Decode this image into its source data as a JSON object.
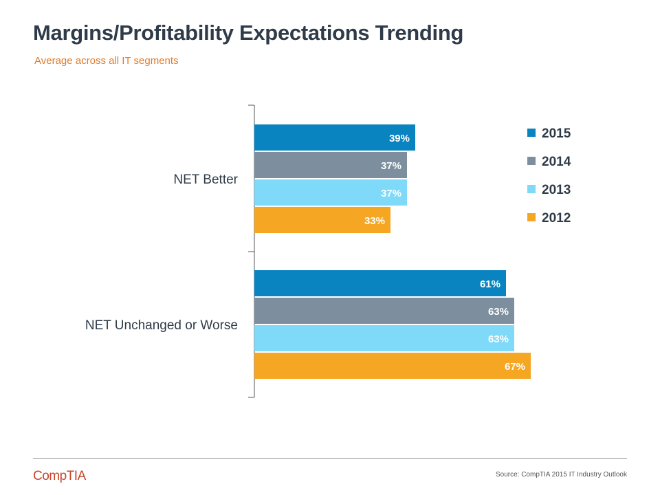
{
  "header": {
    "title": "Margins/Profitability Expectations Trending",
    "subtitle": "Average across all IT segments"
  },
  "footer": {
    "logo_text": "CompTIA",
    "source": "Source: CompTIA 2015 IT Industry Outlook"
  },
  "colors": {
    "2015": "#0a84c0",
    "2014": "#7d8f9e",
    "2013": "#7fd9f9",
    "2012": "#f5a623",
    "label_text": "#ffffff",
    "legend_text": "#2f3b48",
    "axis": "#555555"
  },
  "chart_data": {
    "type": "bar",
    "orientation": "horizontal",
    "title": "Margins/Profitability Expectations Trending",
    "subtitle": "Average across all IT segments",
    "categories": [
      "NET Better",
      "NET Unchanged or Worse"
    ],
    "series": [
      {
        "name": "2015",
        "values": [
          39,
          61
        ],
        "labels": [
          "39%",
          "61%"
        ]
      },
      {
        "name": "2014",
        "values": [
          37,
          63
        ],
        "labels": [
          "37%",
          "63%"
        ]
      },
      {
        "name": "2013",
        "values": [
          37,
          63
        ],
        "labels": [
          "37%",
          "63%"
        ]
      },
      {
        "name": "2012",
        "values": [
          33,
          67
        ],
        "labels": [
          "33%",
          "67%"
        ]
      }
    ],
    "unit": "%",
    "xlim": [
      0,
      100
    ],
    "grid": false,
    "legend_position": "right"
  }
}
